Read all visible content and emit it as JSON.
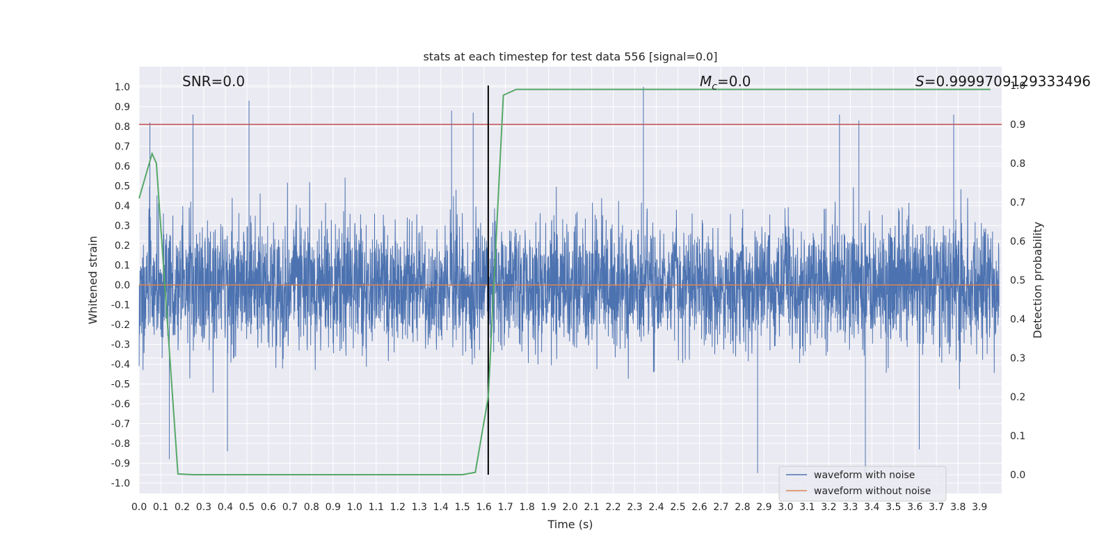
{
  "chart_data": {
    "type": "line",
    "title": "stats at each timestep for test data 556 [signal=0.0]",
    "xlabel": "Time (s)",
    "ylabel": "Whitened strain",
    "ylabel_right": "Detection probability",
    "xlim": [
      0.0,
      3.99
    ],
    "ylim": [
      -1.1,
      1.1
    ],
    "ylim_right": [
      -0.05,
      1.05
    ],
    "grid": true,
    "legend_position": "bottom-right",
    "x_tick_labels": [
      "0.0",
      "0.1",
      "0.2",
      "0.3",
      "0.4",
      "0.5",
      "0.6",
      "0.7",
      "0.8",
      "0.9",
      "1.0",
      "1.1",
      "1.2",
      "1.3",
      "1.4",
      "1.5",
      "1.6",
      "1.7",
      "1.8",
      "1.9",
      "2.0",
      "2.1",
      "2.2",
      "2.3",
      "2.4",
      "2.5",
      "2.6",
      "2.7",
      "2.8",
      "2.9",
      "3.0",
      "3.1",
      "3.2",
      "3.3",
      "3.4",
      "3.5",
      "3.6",
      "3.7",
      "3.8",
      "3.9"
    ],
    "y_tick_labels": [
      "1.0",
      "0.9",
      "0.8",
      "0.7",
      "0.6",
      "0.5",
      "0.4",
      "0.3",
      "0.2",
      "0.1",
      "0.0",
      "-0.1",
      "-0.2",
      "-0.3",
      "-0.4",
      "-0.5",
      "-0.6",
      "-0.7",
      "-0.8",
      "-0.9",
      "-1.0"
    ],
    "y_right_tick_labels": [
      "1.0",
      "0.9",
      "0.8",
      "0.7",
      "0.6",
      "0.5",
      "0.4",
      "0.3",
      "0.2",
      "0.1",
      "0.0"
    ],
    "annotations": {
      "snr": "SNR=0.0",
      "mc_symbol": "M",
      "mc_subscript": "c",
      "mc_value": "=0.0",
      "s_symbol": "S",
      "s_value": "=0.9999709129333496"
    },
    "series": [
      {
        "name": "waveform with noise",
        "color": "#4c72b0",
        "kind": "noise",
        "x_range": [
          0.0,
          3.99
        ],
        "amplitude_range": [
          -0.95,
          1.0
        ]
      },
      {
        "name": "waveform without noise",
        "color": "#dd8452",
        "kind": "constant",
        "x": [
          0.0,
          3.99
        ],
        "y": [
          0.0,
          0.0
        ]
      },
      {
        "name": "",
        "color": "#55a868",
        "axis": "right",
        "x": [
          0.0,
          0.06,
          0.08,
          0.18,
          0.25,
          0.8,
          1.5,
          1.56,
          1.62,
          1.69,
          1.75,
          3.95
        ],
        "y": [
          0.71,
          0.825,
          0.8,
          0.002,
          0.0,
          0.0,
          0.0,
          0.006,
          0.2,
          0.975,
          0.99,
          0.99
        ]
      },
      {
        "name": "",
        "color": "#c44e52",
        "axis": "right",
        "kind": "threshold",
        "y": 0.9
      }
    ],
    "vertical_marker": {
      "x": 1.62,
      "color": "#000000"
    }
  }
}
